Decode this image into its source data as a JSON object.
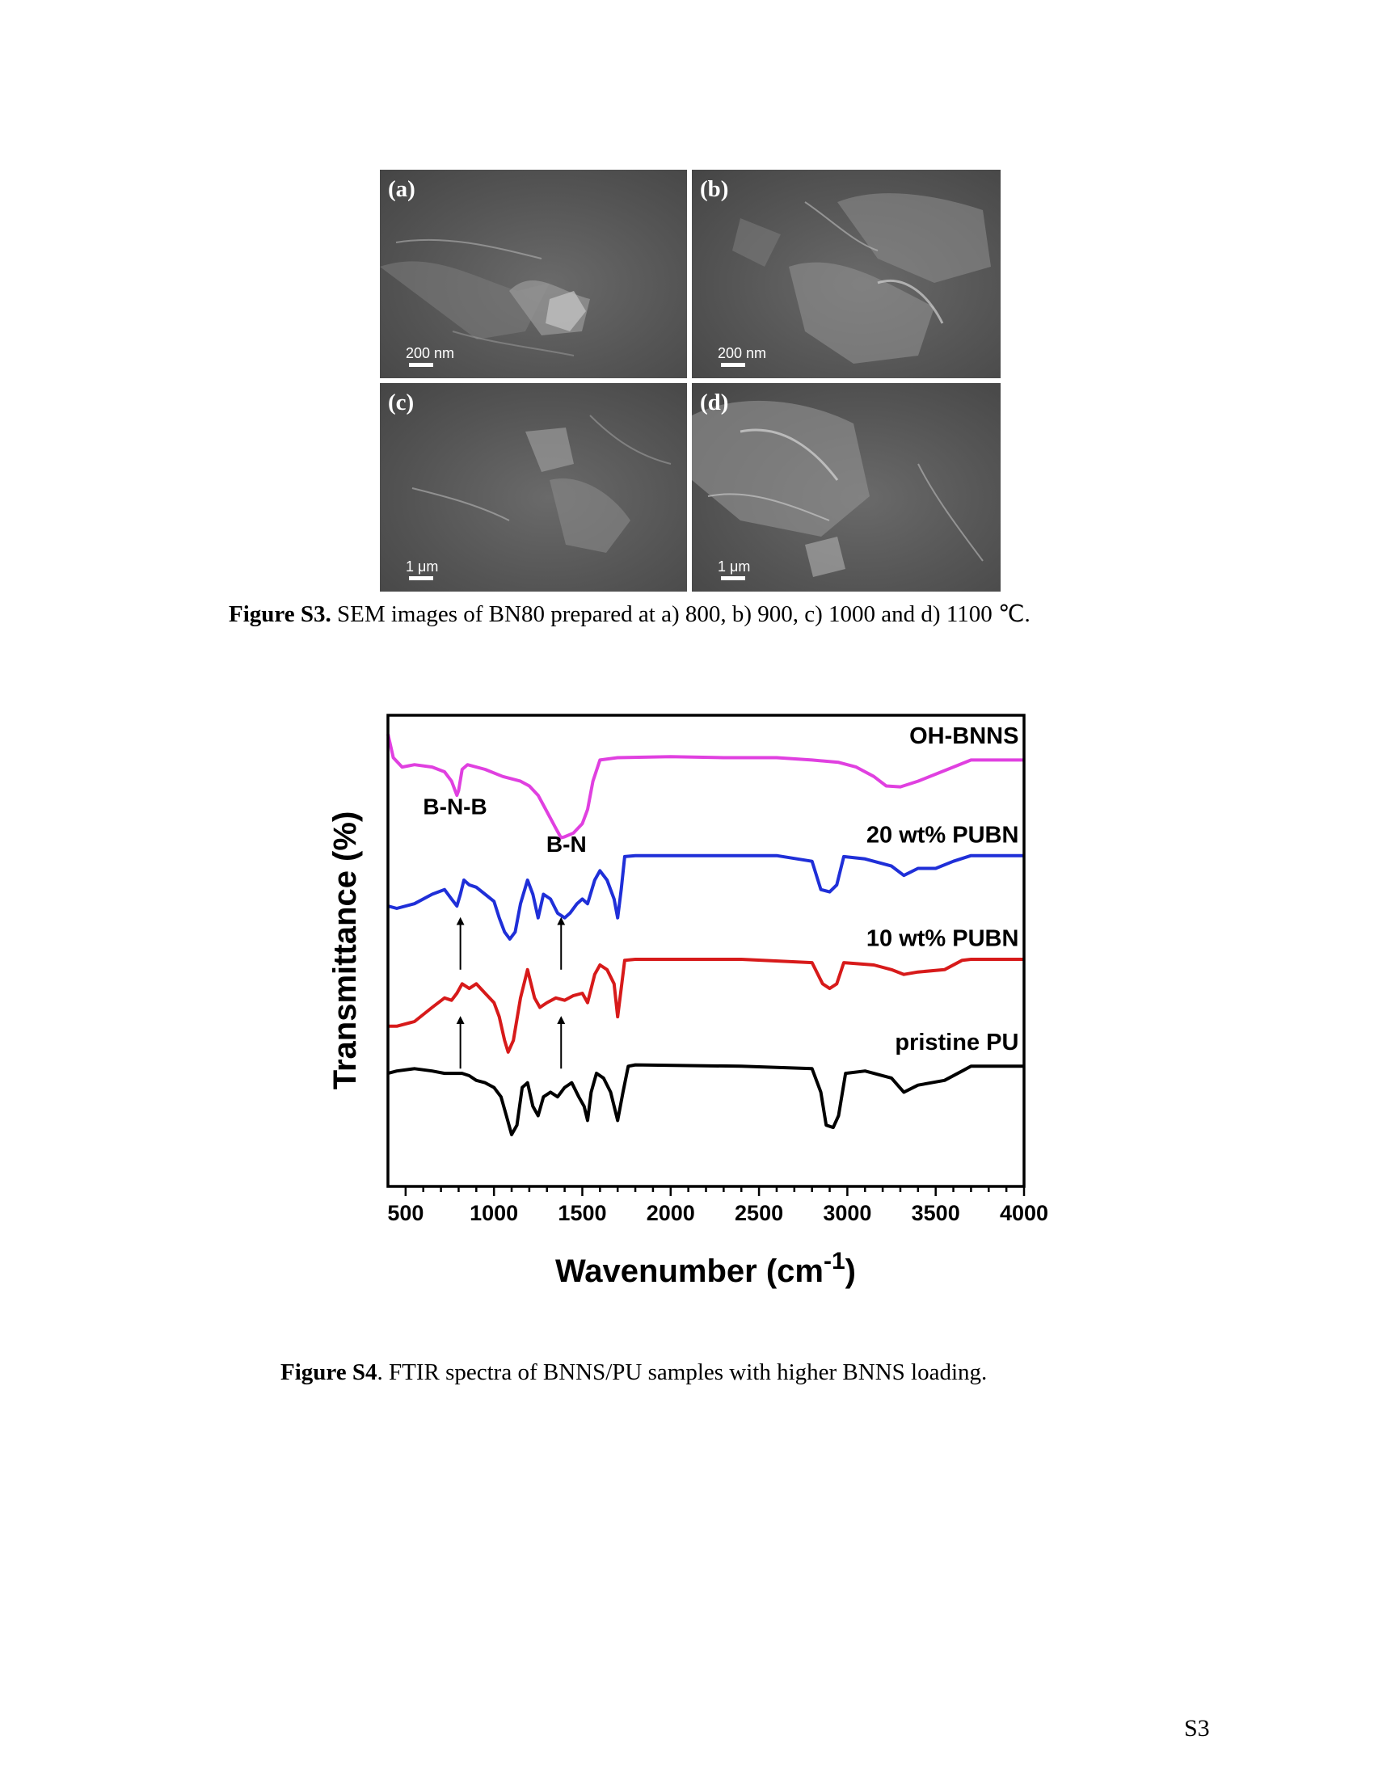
{
  "figure_s3": {
    "panels": [
      {
        "label": "(a)",
        "scale": "200 nm"
      },
      {
        "label": "(b)",
        "scale": "200 nm"
      },
      {
        "label": "(c)",
        "scale": "1 μm"
      },
      {
        "label": "(d)",
        "scale": "1 μm"
      }
    ],
    "caption_bold": "Figure S3.",
    "caption_text": " SEM images of BN80 prepared at a) 800, b) 900, c) 1000 and d) 1100 ℃."
  },
  "figure_s4": {
    "caption_bold": "Figure S4",
    "caption_text": ". FTIR spectra of BNNS/PU samples with higher BNNS loading."
  },
  "page_number": "S3",
  "chart_data": {
    "type": "line",
    "title": "",
    "xlabel": "Wavenumber (cm",
    "xlabel_superscript": "-1",
    "xlabel_close": ")",
    "ylabel": "Transmittance (%)",
    "xlim": [
      400,
      4000
    ],
    "ylim": [
      0,
      100
    ],
    "x_ticks": [
      500,
      1000,
      1500,
      2000,
      2500,
      3000,
      3500,
      4000
    ],
    "y_ticks_shown": false,
    "grid": false,
    "legend": "none",
    "series": [
      {
        "name": "OH-BNNS",
        "color": "#e040e0",
        "points": [
          [
            400,
            96
          ],
          [
            430,
            91
          ],
          [
            480,
            89
          ],
          [
            550,
            89.5
          ],
          [
            650,
            89
          ],
          [
            720,
            88
          ],
          [
            760,
            86
          ],
          [
            790,
            83
          ],
          [
            800,
            84
          ],
          [
            820,
            88.5
          ],
          [
            850,
            89.5
          ],
          [
            950,
            88.5
          ],
          [
            1050,
            87
          ],
          [
            1150,
            86
          ],
          [
            1200,
            85
          ],
          [
            1250,
            83
          ],
          [
            1300,
            79.5
          ],
          [
            1350,
            76
          ],
          [
            1380,
            74
          ],
          [
            1400,
            74.2
          ],
          [
            1450,
            75
          ],
          [
            1500,
            77
          ],
          [
            1530,
            80
          ],
          [
            1560,
            86
          ],
          [
            1600,
            90.5
          ],
          [
            1700,
            91
          ],
          [
            2000,
            91.2
          ],
          [
            2300,
            91
          ],
          [
            2600,
            91
          ],
          [
            2800,
            90.5
          ],
          [
            2950,
            90
          ],
          [
            3050,
            89
          ],
          [
            3150,
            87
          ],
          [
            3220,
            85
          ],
          [
            3300,
            84.8
          ],
          [
            3400,
            86
          ],
          [
            3500,
            87.5
          ],
          [
            3600,
            89
          ],
          [
            3700,
            90.5
          ],
          [
            3800,
            90.5
          ],
          [
            4000,
            90.5
          ]
        ]
      },
      {
        "name": "20 wt% PUBN",
        "color": "#1f2fd8",
        "points": [
          [
            400,
            59.5
          ],
          [
            450,
            59
          ],
          [
            550,
            60
          ],
          [
            650,
            62
          ],
          [
            720,
            63
          ],
          [
            760,
            61
          ],
          [
            790,
            59.5
          ],
          [
            810,
            62
          ],
          [
            830,
            65
          ],
          [
            860,
            64
          ],
          [
            900,
            63.5
          ],
          [
            950,
            62
          ],
          [
            1000,
            60.5
          ],
          [
            1030,
            57
          ],
          [
            1060,
            54
          ],
          [
            1090,
            52.5
          ],
          [
            1120,
            54
          ],
          [
            1150,
            60
          ],
          [
            1190,
            65
          ],
          [
            1220,
            62
          ],
          [
            1250,
            57
          ],
          [
            1280,
            62
          ],
          [
            1320,
            61
          ],
          [
            1360,
            58
          ],
          [
            1400,
            57
          ],
          [
            1430,
            58
          ],
          [
            1470,
            60
          ],
          [
            1500,
            61
          ],
          [
            1530,
            60
          ],
          [
            1570,
            65
          ],
          [
            1600,
            67
          ],
          [
            1640,
            65
          ],
          [
            1680,
            61
          ],
          [
            1700,
            57
          ],
          [
            1720,
            63
          ],
          [
            1740,
            70
          ],
          [
            1800,
            70.2
          ],
          [
            2200,
            70.2
          ],
          [
            2600,
            70.2
          ],
          [
            2800,
            69
          ],
          [
            2850,
            63
          ],
          [
            2900,
            62.5
          ],
          [
            2940,
            64
          ],
          [
            2980,
            70
          ],
          [
            3100,
            69.5
          ],
          [
            3250,
            68
          ],
          [
            3320,
            66
          ],
          [
            3400,
            67.5
          ],
          [
            3500,
            67.5
          ],
          [
            3600,
            69
          ],
          [
            3700,
            70.2
          ],
          [
            4000,
            70.2
          ]
        ]
      },
      {
        "name": "10 wt% PUBN",
        "color": "#d71a1a",
        "points": [
          [
            400,
            34
          ],
          [
            450,
            34
          ],
          [
            550,
            35
          ],
          [
            650,
            38
          ],
          [
            720,
            40
          ],
          [
            760,
            39.5
          ],
          [
            790,
            41
          ],
          [
            820,
            43
          ],
          [
            860,
            42
          ],
          [
            900,
            43
          ],
          [
            950,
            41
          ],
          [
            1000,
            39
          ],
          [
            1030,
            36
          ],
          [
            1060,
            31
          ],
          [
            1080,
            28.5
          ],
          [
            1110,
            31
          ],
          [
            1150,
            40
          ],
          [
            1190,
            46
          ],
          [
            1230,
            40
          ],
          [
            1260,
            38
          ],
          [
            1300,
            39
          ],
          [
            1350,
            40
          ],
          [
            1400,
            39.5
          ],
          [
            1450,
            40.5
          ],
          [
            1500,
            41
          ],
          [
            1530,
            39
          ],
          [
            1570,
            45
          ],
          [
            1600,
            47
          ],
          [
            1640,
            46
          ],
          [
            1680,
            43
          ],
          [
            1700,
            36
          ],
          [
            1720,
            42
          ],
          [
            1740,
            48
          ],
          [
            1800,
            48.2
          ],
          [
            2400,
            48.2
          ],
          [
            2800,
            47.5
          ],
          [
            2860,
            43
          ],
          [
            2900,
            42
          ],
          [
            2940,
            43
          ],
          [
            2980,
            47.5
          ],
          [
            3150,
            47
          ],
          [
            3250,
            46
          ],
          [
            3320,
            45
          ],
          [
            3400,
            45.5
          ],
          [
            3550,
            46
          ],
          [
            3650,
            48
          ],
          [
            3700,
            48.2
          ],
          [
            4000,
            48.2
          ]
        ]
      },
      {
        "name": "pristine PU",
        "color": "#000000",
        "points": [
          [
            400,
            24
          ],
          [
            450,
            24.5
          ],
          [
            550,
            25
          ],
          [
            650,
            24.5
          ],
          [
            720,
            24
          ],
          [
            780,
            24
          ],
          [
            820,
            24
          ],
          [
            860,
            23.5
          ],
          [
            900,
            22.5
          ],
          [
            950,
            22
          ],
          [
            1000,
            21
          ],
          [
            1040,
            19
          ],
          [
            1070,
            15
          ],
          [
            1100,
            11
          ],
          [
            1130,
            13
          ],
          [
            1160,
            21
          ],
          [
            1190,
            22
          ],
          [
            1220,
            17
          ],
          [
            1250,
            15
          ],
          [
            1280,
            19
          ],
          [
            1320,
            20
          ],
          [
            1360,
            19
          ],
          [
            1400,
            21
          ],
          [
            1440,
            22
          ],
          [
            1480,
            19
          ],
          [
            1510,
            17
          ],
          [
            1530,
            14
          ],
          [
            1550,
            20
          ],
          [
            1580,
            24
          ],
          [
            1620,
            23
          ],
          [
            1660,
            20
          ],
          [
            1700,
            14
          ],
          [
            1730,
            20
          ],
          [
            1760,
            25.5
          ],
          [
            1800,
            25.8
          ],
          [
            2400,
            25.5
          ],
          [
            2800,
            25
          ],
          [
            2850,
            20
          ],
          [
            2880,
            13
          ],
          [
            2920,
            12.5
          ],
          [
            2950,
            15
          ],
          [
            2990,
            24
          ],
          [
            3100,
            24.5
          ],
          [
            3250,
            23
          ],
          [
            3320,
            20
          ],
          [
            3400,
            21.5
          ],
          [
            3550,
            22.5
          ],
          [
            3650,
            24.5
          ],
          [
            3700,
            25.5
          ],
          [
            4000,
            25.5
          ]
        ]
      }
    ],
    "annotations": [
      {
        "text": "B-N-B",
        "x": 780,
        "y": 79
      },
      {
        "text": "B-N",
        "x": 1410,
        "y": 71
      }
    ],
    "arrows": [
      {
        "x": 810,
        "y_from": 46,
        "y_to": 57
      },
      {
        "x": 1380,
        "y_from": 46,
        "y_to": 57
      },
      {
        "x": 810,
        "y_from": 25,
        "y_to": 36
      },
      {
        "x": 1380,
        "y_from": 25,
        "y_to": 36
      }
    ],
    "series_labels": [
      {
        "text": "OH-BNNS",
        "x": 3970,
        "y": 94
      },
      {
        "text": "20 wt% PUBN",
        "x": 3970,
        "y": 73
      },
      {
        "text": "10 wt% PUBN",
        "x": 3970,
        "y": 51
      },
      {
        "text": "pristine PU",
        "x": 3970,
        "y": 29
      }
    ]
  }
}
